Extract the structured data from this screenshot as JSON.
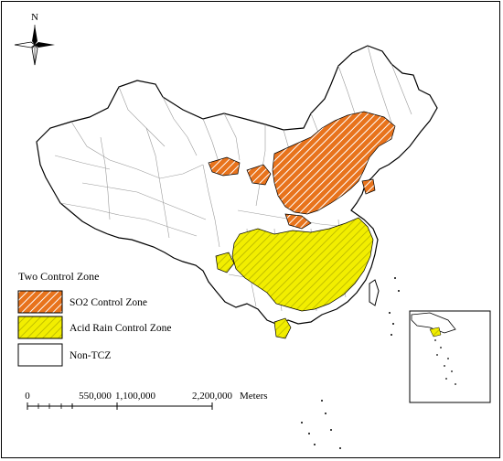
{
  "north_arrow": {
    "label": "N",
    "icon": "compass-rose-icon"
  },
  "legend": {
    "title": "Two Control Zone",
    "items": [
      {
        "label": "SO2 Control Zone",
        "pattern": "orange-hatch",
        "fill": "#e8731c",
        "stripe": "#ffffff"
      },
      {
        "label": "Acid Rain Control Zone",
        "pattern": "yellow-hatch",
        "fill": "#f2ee00",
        "stripe": "#bdbd00"
      },
      {
        "label": "Non-TCZ",
        "pattern": "none",
        "fill": "#ffffff",
        "stripe": ""
      }
    ]
  },
  "scale_bar": {
    "ticks": [
      "0",
      "550,000",
      "1,100,000",
      "2,200,000"
    ],
    "unit": "Meters"
  },
  "colors": {
    "so2": "#e8731c",
    "acid_rain": "#f2ee00",
    "boundary": "#000000",
    "internal_boundary": "#9a9a9a"
  }
}
